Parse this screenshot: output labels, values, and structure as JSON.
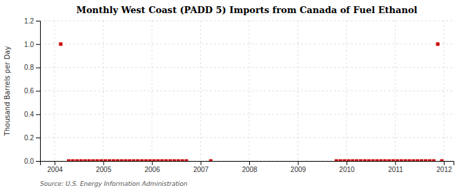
{
  "chart_data": {
    "type": "scatter",
    "title": "Monthly West Coast (PADD 5) Imports from Canada of Fuel Ethanol",
    "y_label": "Thousand Barrels per Day",
    "source": "Source: U.S. Energy Information Administration",
    "color": "#cc0000",
    "marker": "square",
    "grid": true,
    "xlim": [
      2003.7,
      2012.2
    ],
    "xticks": [
      2004,
      2005,
      2006,
      2007,
      2008,
      2009,
      2010,
      2011,
      2012
    ],
    "ylim": [
      0.0,
      1.2
    ],
    "yticks": [
      {
        "value": 0.0,
        "label": "0.0"
      },
      0.2,
      0.4,
      0.6,
      0.8,
      {
        "value": 1.0,
        "label": "1.0"
      },
      1.2
    ],
    "x": [
      2004.125,
      2004.2916666666667,
      2004.375,
      2004.4583333333333,
      2004.5416666666667,
      2004.625,
      2004.7083333333333,
      2004.7916666666667,
      2004.875,
      2004.9583333333333,
      2005.0416666666667,
      2005.125,
      2005.2083333333333,
      2005.2916666666667,
      2005.375,
      2005.4583333333333,
      2005.5416666666667,
      2005.625,
      2005.7083333333333,
      2005.7916666666667,
      2005.875,
      2005.9583333333333,
      2006.0416666666667,
      2006.125,
      2006.2083333333333,
      2006.2916666666667,
      2006.375,
      2006.4583333333333,
      2006.5416666666667,
      2006.625,
      2006.7083333333333,
      2007.2083333333333,
      2009.7916666666667,
      2009.875,
      2009.9583333333333,
      2010.0416666666667,
      2010.125,
      2010.2083333333333,
      2010.2916666666667,
      2010.375,
      2010.4583333333333,
      2010.5416666666667,
      2010.625,
      2010.7083333333333,
      2010.7916666666667,
      2010.875,
      2010.9583333333333,
      2011.0416666666667,
      2011.125,
      2011.2083333333333,
      2011.2916666666667,
      2011.375,
      2011.4583333333333,
      2011.5416666666667,
      2011.625,
      2011.7083333333333,
      2011.7916666666667,
      2011.875,
      2011.9583333333333
    ],
    "values": [
      1.0,
      0.0,
      0.0,
      0.0,
      0.0,
      0.0,
      0.0,
      0.0,
      0.0,
      0.0,
      0.0,
      0.0,
      0.0,
      0.0,
      0.0,
      0.0,
      0.0,
      0.0,
      0.0,
      0.0,
      0.0,
      0.0,
      0.0,
      0.0,
      0.0,
      0.0,
      0.0,
      0.0,
      0.0,
      0.0,
      0.0,
      0.0,
      0.0,
      0.0,
      0.0,
      0.0,
      0.0,
      0.0,
      0.0,
      0.0,
      0.0,
      0.0,
      0.0,
      0.0,
      0.0,
      0.0,
      0.0,
      0.0,
      0.0,
      0.0,
      0.0,
      0.0,
      0.0,
      0.0,
      0.0,
      0.0,
      0.0,
      1.0,
      0.0
    ]
  }
}
